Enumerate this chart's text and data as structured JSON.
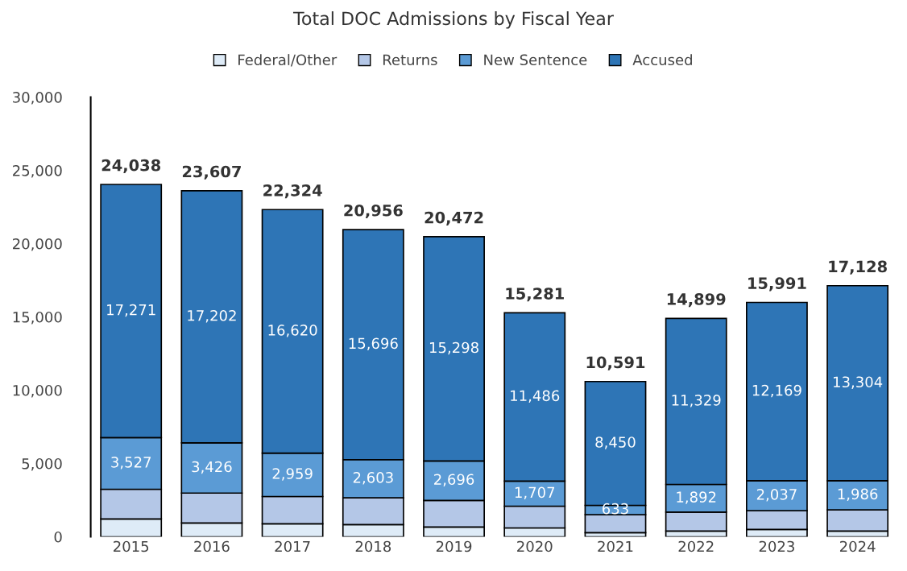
{
  "chart_data": {
    "type": "bar",
    "stacked": true,
    "title": "Total DOC Admissions by Fiscal Year",
    "categories": [
      "2015",
      "2016",
      "2017",
      "2018",
      "2019",
      "2020",
      "2021",
      "2022",
      "2023",
      "2024"
    ],
    "series": [
      {
        "name": "Federal/Other",
        "color": "#deebf7",
        "values": [
          1210,
          940,
          880,
          830,
          660,
          600,
          280,
          390,
          500,
          390
        ]
      },
      {
        "name": "Returns",
        "color": "#b4c7e7",
        "values": [
          2030,
          2039,
          1865,
          1827,
          1818,
          1488,
          1228,
          1288,
          1285,
          1448
        ]
      },
      {
        "name": "New Sentence",
        "color": "#5b9bd5",
        "values": [
          3527,
          3426,
          2959,
          2603,
          2696,
          1707,
          633,
          1892,
          2037,
          1986
        ],
        "value_labels": [
          "3,527",
          "3,426",
          "2,959",
          "2,603",
          "2,696",
          "1,707",
          "633",
          "1,892",
          "2,037",
          "1,986"
        ]
      },
      {
        "name": "Accused",
        "color": "#2e75b6",
        "values": [
          17271,
          17202,
          16620,
          15696,
          15298,
          11486,
          8450,
          11329,
          12169,
          13304
        ],
        "value_labels": [
          "17,271",
          "17,202",
          "16,620",
          "15,696",
          "15,298",
          "11,486",
          "8,450",
          "11,329",
          "12,169",
          "13,304"
        ]
      }
    ],
    "totals": [
      "24,038",
      "23,607",
      "22,324",
      "20,956",
      "20,472",
      "15,281",
      "10,591",
      "14,899",
      "15,991",
      "17,128"
    ],
    "ylim": [
      0,
      30000
    ],
    "yticks": [
      {
        "value": 0,
        "label": "0"
      },
      {
        "value": 5000,
        "label": "5,000"
      },
      {
        "value": 10000,
        "label": "10,000"
      },
      {
        "value": 15000,
        "label": "15,000"
      },
      {
        "value": 20000,
        "label": "20,000"
      },
      {
        "value": 25000,
        "label": "25,000"
      },
      {
        "value": 30000,
        "label": "30,000"
      }
    ],
    "grid": false,
    "legend": "top"
  }
}
